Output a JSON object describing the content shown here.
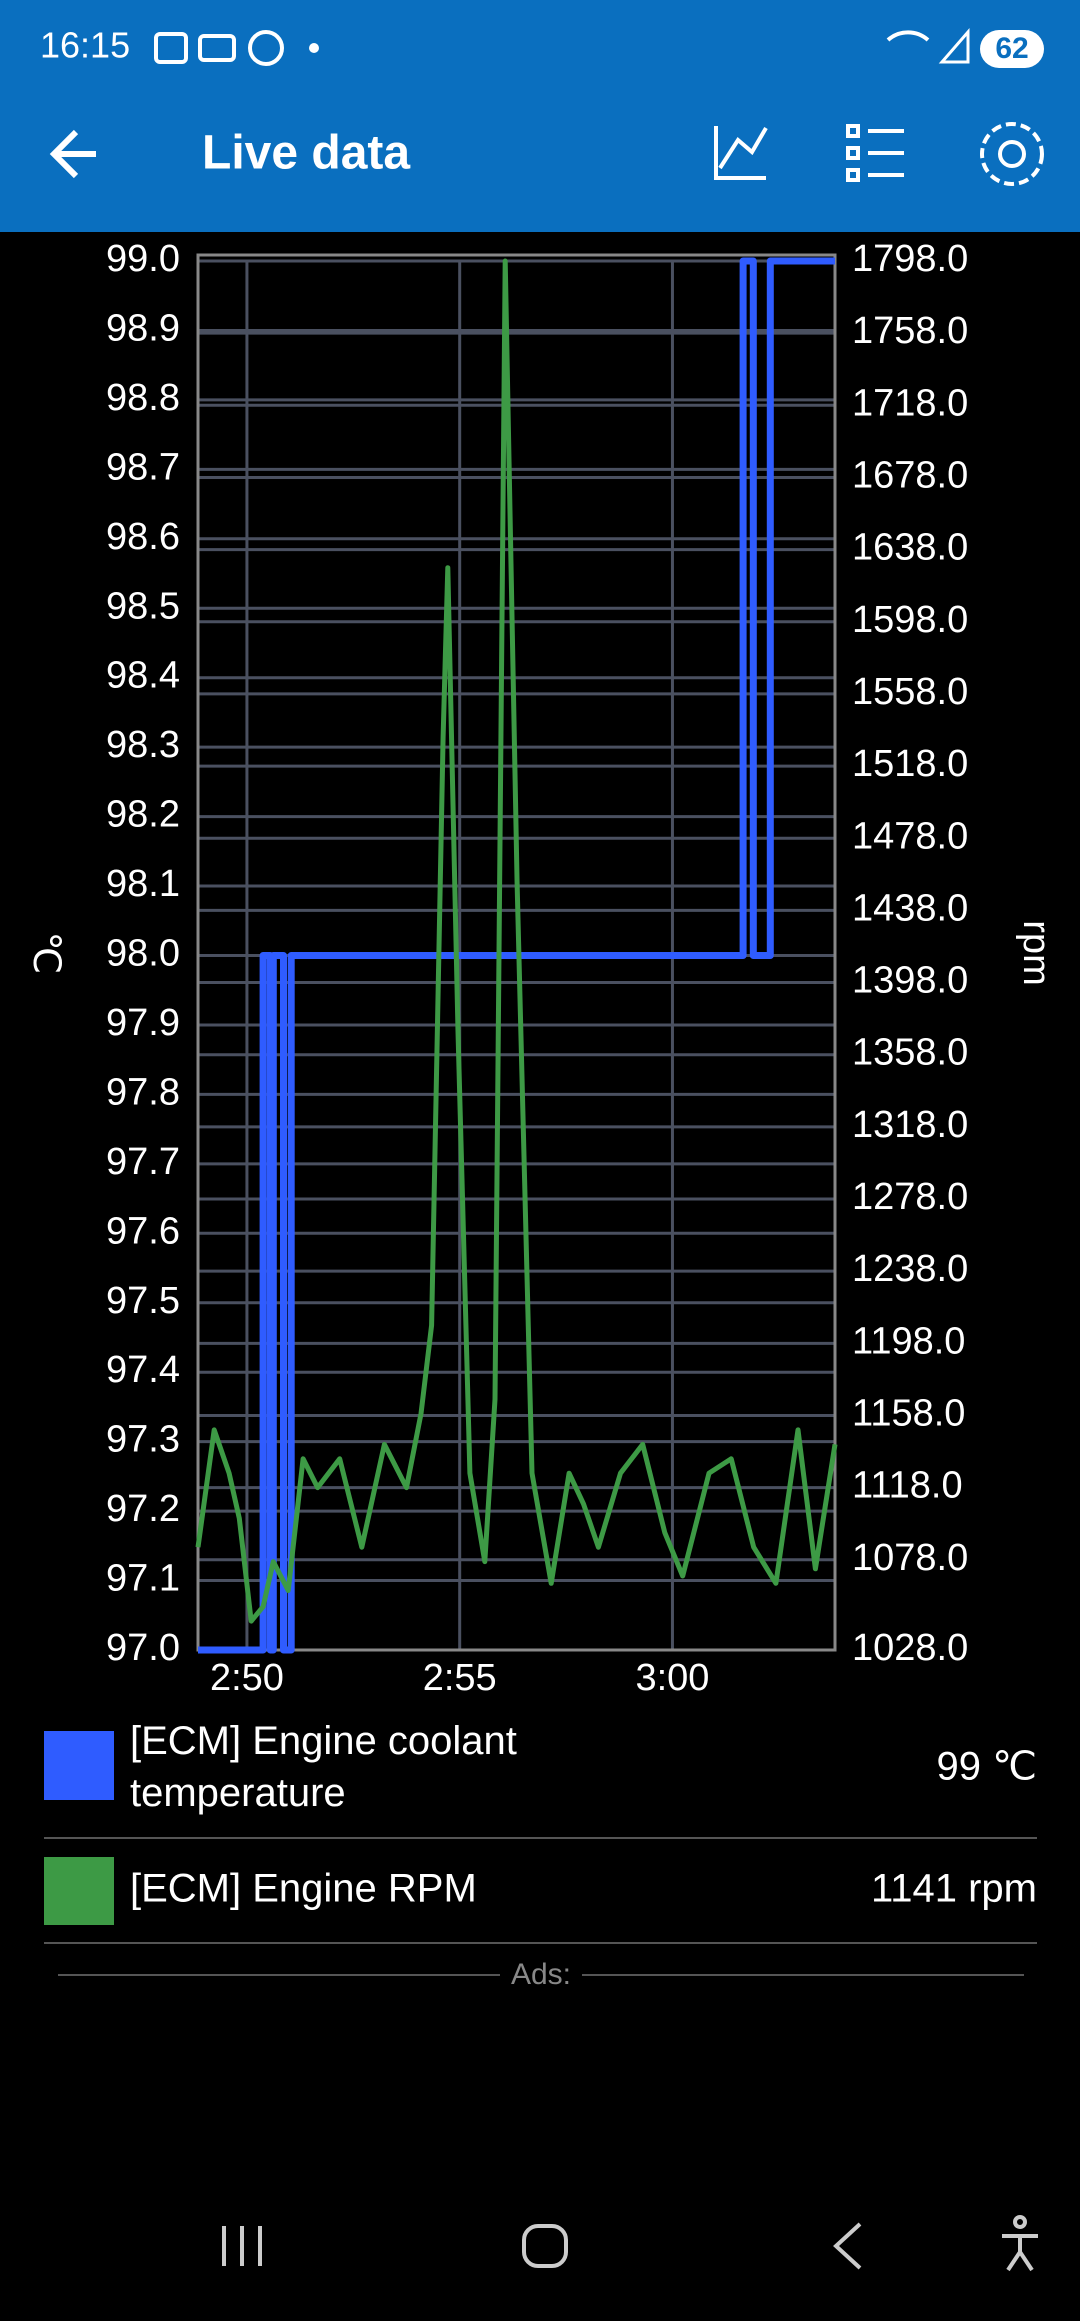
{
  "status_bar": {
    "time": "16:15",
    "battery": "62"
  },
  "app_bar": {
    "title": "Live data"
  },
  "chart_data": {
    "type": "line",
    "ylabel": "℃",
    "y2label": "rpm",
    "xlim": [
      168.85,
      183.82
    ],
    "xticks": [
      {
        "value": 170,
        "label": "2:50"
      },
      {
        "value": 175,
        "label": "2:55"
      },
      {
        "value": 180,
        "label": "3:00"
      }
    ],
    "ylim": [
      97,
      99
    ],
    "yticks": [
      {
        "value": 97,
        "label": "97.0"
      },
      {
        "value": 97.1,
        "label": "97.1"
      },
      {
        "value": 97.2,
        "label": "97.2"
      },
      {
        "value": 97.3,
        "label": "97.3"
      },
      {
        "value": 97.4,
        "label": "97.4"
      },
      {
        "value": 97.5,
        "label": "97.5"
      },
      {
        "value": 97.6,
        "label": "97.6"
      },
      {
        "value": 97.7,
        "label": "97.7"
      },
      {
        "value": 97.8,
        "label": "97.8"
      },
      {
        "value": 97.9,
        "label": "97.9"
      },
      {
        "value": 98,
        "label": "98.0"
      },
      {
        "value": 98.1,
        "label": "98.1"
      },
      {
        "value": 98.2,
        "label": "98.2"
      },
      {
        "value": 98.3,
        "label": "98.3"
      },
      {
        "value": 98.4,
        "label": "98.4"
      },
      {
        "value": 98.5,
        "label": "98.5"
      },
      {
        "value": 98.6,
        "label": "98.6"
      },
      {
        "value": 98.7,
        "label": "98.7"
      },
      {
        "value": 98.8,
        "label": "98.8"
      },
      {
        "value": 98.9,
        "label": "98.9"
      },
      {
        "value": 99,
        "label": "99.0"
      }
    ],
    "y2lim": [
      1028,
      1798
    ],
    "y2ticks": [
      {
        "value": 1028,
        "label": "1028.0"
      },
      {
        "value": 1078,
        "label": "1078.0"
      },
      {
        "value": 1118,
        "label": "1118.0"
      },
      {
        "value": 1158,
        "label": "1158.0"
      },
      {
        "value": 1198,
        "label": "1198.0"
      },
      {
        "value": 1238,
        "label": "1238.0"
      },
      {
        "value": 1278,
        "label": "1278.0"
      },
      {
        "value": 1318,
        "label": "1318.0"
      },
      {
        "value": 1358,
        "label": "1358.0"
      },
      {
        "value": 1398,
        "label": "1398.0"
      },
      {
        "value": 1438,
        "label": "1438.0"
      },
      {
        "value": 1478,
        "label": "1478.0"
      },
      {
        "value": 1518,
        "label": "1518.0"
      },
      {
        "value": 1558,
        "label": "1558.0"
      },
      {
        "value": 1598,
        "label": "1598.0"
      },
      {
        "value": 1638,
        "label": "1638.0"
      },
      {
        "value": 1678,
        "label": "1678.0"
      },
      {
        "value": 1718,
        "label": "1718.0"
      },
      {
        "value": 1758,
        "label": "1758.0"
      },
      {
        "value": 1798,
        "label": "1798.0"
      }
    ],
    "grid": true,
    "series": [
      {
        "name": "[ECM] Engine coolant temperature",
        "color": "#2f5cff",
        "axis": "y",
        "readout": "99 ℃",
        "x": [
          168.85,
          170.38,
          170.38,
          170.55,
          170.55,
          170.62,
          170.62,
          170.86,
          170.86,
          171.04,
          171.04,
          181.66,
          181.66,
          181.9,
          181.9,
          182.3,
          182.3,
          183.82
        ],
        "values": [
          97,
          97,
          98,
          98,
          97,
          97,
          98,
          98,
          97,
          97,
          98,
          98,
          99,
          99,
          98,
          98,
          99,
          99
        ]
      },
      {
        "name": "[ECM] Engine RPM",
        "color": "#3d9a45",
        "axis": "y2",
        "readout": "1141 rpm",
        "x": [
          168.85,
          169.23,
          169.58,
          169.82,
          170.1,
          170.38,
          170.62,
          170.97,
          171.32,
          171.66,
          172.18,
          172.7,
          173.23,
          173.75,
          174.09,
          174.34,
          174.61,
          174.72,
          174.96,
          175.24,
          175.59,
          175.83,
          176.07,
          176.35,
          176.7,
          177.15,
          177.57,
          177.91,
          178.26,
          178.78,
          179.3,
          179.82,
          180.24,
          180.86,
          181.38,
          181.91,
          182.43,
          182.95,
          183.36,
          183.82
        ],
        "values": [
          1085,
          1150,
          1126,
          1101,
          1044,
          1052,
          1077,
          1061,
          1134,
          1118,
          1134,
          1085,
          1142,
          1118,
          1159,
          1208,
          1534,
          1628,
          1371,
          1126,
          1077,
          1167,
          1798,
          1453,
          1126,
          1065,
          1126,
          1109,
          1085,
          1126,
          1142,
          1093,
          1069,
          1126,
          1134,
          1085,
          1065,
          1150,
          1073,
          1142
        ]
      }
    ]
  },
  "ads": {
    "label": "Ads:"
  }
}
